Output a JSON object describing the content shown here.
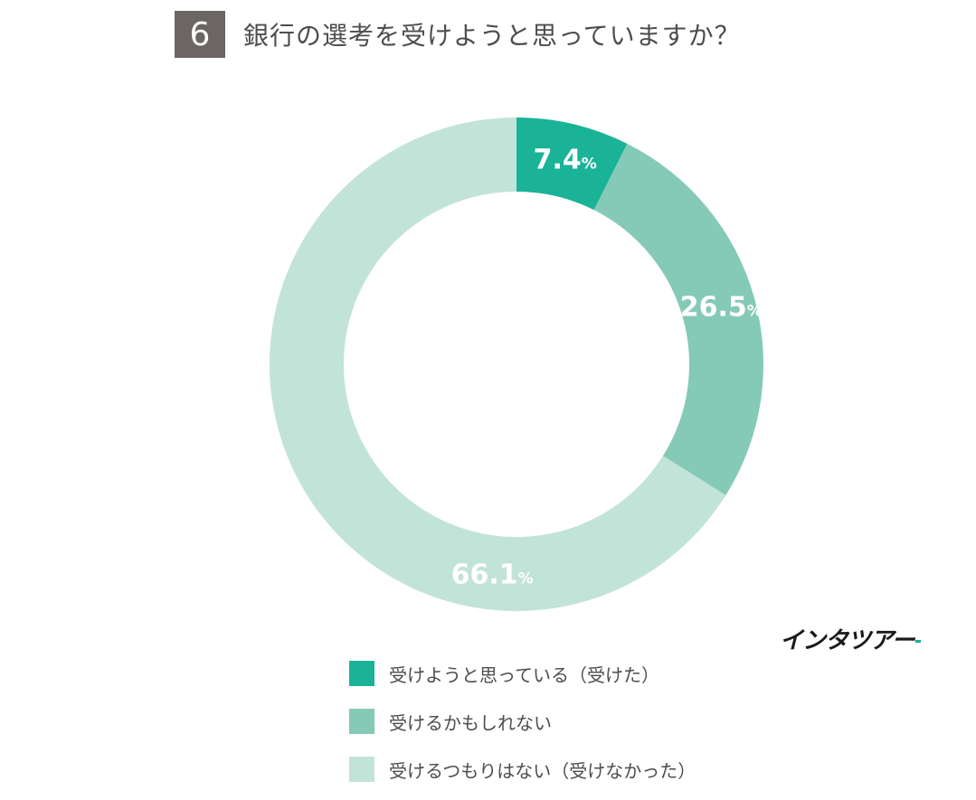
{
  "header": {
    "number": "6",
    "title": "銀行の選考を受けようと思っていますか？"
  },
  "brand": {
    "name": "インタツアー"
  },
  "chart_data": {
    "type": "pie",
    "title": "銀行の選考を受けようと思っていますか？",
    "donut": true,
    "unit": "%",
    "series": [
      {
        "name": "受けようと思っている（受けた）",
        "value": 7.4,
        "label": "7.4",
        "color": "#1bb398"
      },
      {
        "name": "受けるかもしれない",
        "value": 26.5,
        "label": "26.5",
        "color": "#85cab6"
      },
      {
        "name": "受けるつもりはない（受けなかった）",
        "value": 66.1,
        "label": "66.1",
        "color": "#c2e3d8"
      }
    ],
    "legend_position": "bottom"
  }
}
